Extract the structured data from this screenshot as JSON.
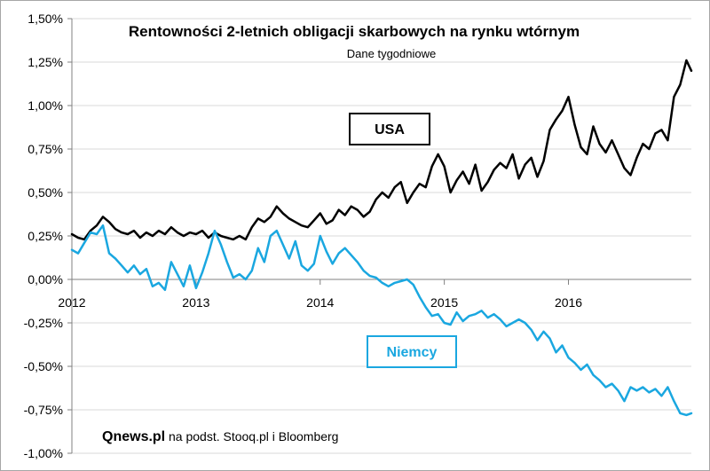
{
  "chart_data": {
    "type": "line",
    "title": "Rentowności 2-letnich obligacji skarbowych na rynku wtórnym",
    "subtitle": "Dane tygodniowe",
    "source_brand": "Qnews.pl",
    "source_text": " na podst. Stooq.pl i Bloomberg",
    "ylim": [
      -1.0,
      1.5
    ],
    "xlim": [
      2012.0,
      2016.99
    ],
    "y_ticks": [
      1.5,
      1.25,
      1.0,
      0.75,
      0.5,
      0.25,
      0.0,
      -0.25,
      -0.5,
      -0.75,
      -1.0
    ],
    "y_tick_labels": [
      "1,50%",
      "1,25%",
      "1,00%",
      "0,75%",
      "0,50%",
      "0,25%",
      "0,00%",
      "-0,25%",
      "-0,50%",
      "-0,75%",
      "-1,00%"
    ],
    "x_ticks": [
      2012,
      2013,
      2014,
      2015,
      2016
    ],
    "x_tick_labels": [
      "2012",
      "2013",
      "2014",
      "2015",
      "2016"
    ],
    "grid": "horizontal",
    "series": [
      {
        "name": "USA",
        "color": "#000000",
        "x": [
          2012.0,
          2012.05,
          2012.1,
          2012.15,
          2012.2,
          2012.25,
          2012.3,
          2012.35,
          2012.4,
          2012.45,
          2012.5,
          2012.55,
          2012.6,
          2012.65,
          2012.7,
          2012.75,
          2012.8,
          2012.85,
          2012.9,
          2012.95,
          2013.0,
          2013.05,
          2013.1,
          2013.15,
          2013.2,
          2013.25,
          2013.3,
          2013.35,
          2013.4,
          2013.45,
          2013.5,
          2013.55,
          2013.6,
          2013.65,
          2013.7,
          2013.75,
          2013.8,
          2013.85,
          2013.9,
          2013.95,
          2014.0,
          2014.05,
          2014.1,
          2014.15,
          2014.2,
          2014.25,
          2014.3,
          2014.35,
          2014.4,
          2014.45,
          2014.5,
          2014.55,
          2014.6,
          2014.65,
          2014.7,
          2014.75,
          2014.8,
          2014.85,
          2014.9,
          2014.95,
          2015.0,
          2015.05,
          2015.1,
          2015.15,
          2015.2,
          2015.25,
          2015.3,
          2015.35,
          2015.4,
          2015.45,
          2015.5,
          2015.55,
          2015.6,
          2015.65,
          2015.7,
          2015.75,
          2015.8,
          2015.85,
          2015.9,
          2015.95,
          2016.0,
          2016.05,
          2016.1,
          2016.15,
          2016.2,
          2016.25,
          2016.3,
          2016.35,
          2016.4,
          2016.45,
          2016.5,
          2016.55,
          2016.6,
          2016.65,
          2016.7,
          2016.75,
          2016.8,
          2016.85,
          2016.9,
          2016.95,
          2016.99
        ],
        "values": [
          0.26,
          0.24,
          0.23,
          0.28,
          0.31,
          0.36,
          0.33,
          0.29,
          0.27,
          0.26,
          0.28,
          0.24,
          0.27,
          0.25,
          0.28,
          0.26,
          0.3,
          0.27,
          0.25,
          0.27,
          0.26,
          0.28,
          0.24,
          0.27,
          0.25,
          0.24,
          0.23,
          0.25,
          0.23,
          0.3,
          0.35,
          0.33,
          0.36,
          0.42,
          0.38,
          0.35,
          0.33,
          0.31,
          0.3,
          0.34,
          0.38,
          0.32,
          0.34,
          0.4,
          0.37,
          0.42,
          0.4,
          0.36,
          0.39,
          0.46,
          0.5,
          0.47,
          0.53,
          0.56,
          0.44,
          0.5,
          0.55,
          0.53,
          0.65,
          0.72,
          0.65,
          0.5,
          0.57,
          0.62,
          0.55,
          0.66,
          0.51,
          0.56,
          0.63,
          0.67,
          0.64,
          0.72,
          0.58,
          0.66,
          0.7,
          0.59,
          0.68,
          0.86,
          0.92,
          0.97,
          1.05,
          0.89,
          0.76,
          0.72,
          0.88,
          0.78,
          0.73,
          0.8,
          0.72,
          0.64,
          0.6,
          0.7,
          0.78,
          0.75,
          0.84,
          0.86,
          0.8,
          1.05,
          1.12,
          1.26,
          1.2
        ]
      },
      {
        "name": "Niemcy",
        "color": "#1aa7e0",
        "x": [
          2012.0,
          2012.05,
          2012.1,
          2012.15,
          2012.2,
          2012.25,
          2012.3,
          2012.35,
          2012.4,
          2012.45,
          2012.5,
          2012.55,
          2012.6,
          2012.65,
          2012.7,
          2012.75,
          2012.8,
          2012.85,
          2012.9,
          2012.95,
          2013.0,
          2013.05,
          2013.1,
          2013.15,
          2013.2,
          2013.25,
          2013.3,
          2013.35,
          2013.4,
          2013.45,
          2013.5,
          2013.55,
          2013.6,
          2013.65,
          2013.7,
          2013.75,
          2013.8,
          2013.85,
          2013.9,
          2013.95,
          2014.0,
          2014.05,
          2014.1,
          2014.15,
          2014.2,
          2014.25,
          2014.3,
          2014.35,
          2014.4,
          2014.45,
          2014.5,
          2014.55,
          2014.6,
          2014.65,
          2014.7,
          2014.75,
          2014.8,
          2014.85,
          2014.9,
          2014.95,
          2015.0,
          2015.05,
          2015.1,
          2015.15,
          2015.2,
          2015.25,
          2015.3,
          2015.35,
          2015.4,
          2015.45,
          2015.5,
          2015.55,
          2015.6,
          2015.65,
          2015.7,
          2015.75,
          2015.8,
          2015.85,
          2015.9,
          2015.95,
          2016.0,
          2016.05,
          2016.1,
          2016.15,
          2016.2,
          2016.25,
          2016.3,
          2016.35,
          2016.4,
          2016.45,
          2016.5,
          2016.55,
          2016.6,
          2016.65,
          2016.7,
          2016.75,
          2016.8,
          2016.85,
          2016.9,
          2016.95,
          2016.99
        ],
        "values": [
          0.17,
          0.15,
          0.21,
          0.27,
          0.26,
          0.31,
          0.15,
          0.12,
          0.08,
          0.04,
          0.08,
          0.03,
          0.06,
          -0.04,
          -0.02,
          -0.06,
          0.1,
          0.03,
          -0.04,
          0.08,
          -0.05,
          0.04,
          0.15,
          0.28,
          0.2,
          0.1,
          0.01,
          0.03,
          0.0,
          0.05,
          0.18,
          0.1,
          0.25,
          0.28,
          0.2,
          0.12,
          0.22,
          0.08,
          0.05,
          0.09,
          0.25,
          0.16,
          0.09,
          0.15,
          0.18,
          0.14,
          0.1,
          0.05,
          0.02,
          0.01,
          -0.02,
          -0.04,
          -0.02,
          -0.01,
          0.0,
          -0.03,
          -0.1,
          -0.16,
          -0.21,
          -0.2,
          -0.25,
          -0.26,
          -0.19,
          -0.24,
          -0.21,
          -0.2,
          -0.18,
          -0.22,
          -0.2,
          -0.23,
          -0.27,
          -0.25,
          -0.23,
          -0.25,
          -0.29,
          -0.35,
          -0.3,
          -0.34,
          -0.42,
          -0.38,
          -0.45,
          -0.48,
          -0.52,
          -0.49,
          -0.55,
          -0.58,
          -0.62,
          -0.6,
          -0.64,
          -0.7,
          -0.62,
          -0.64,
          -0.62,
          -0.65,
          -0.63,
          -0.67,
          -0.62,
          -0.7,
          -0.77,
          -0.78,
          -0.77
        ]
      }
    ]
  }
}
